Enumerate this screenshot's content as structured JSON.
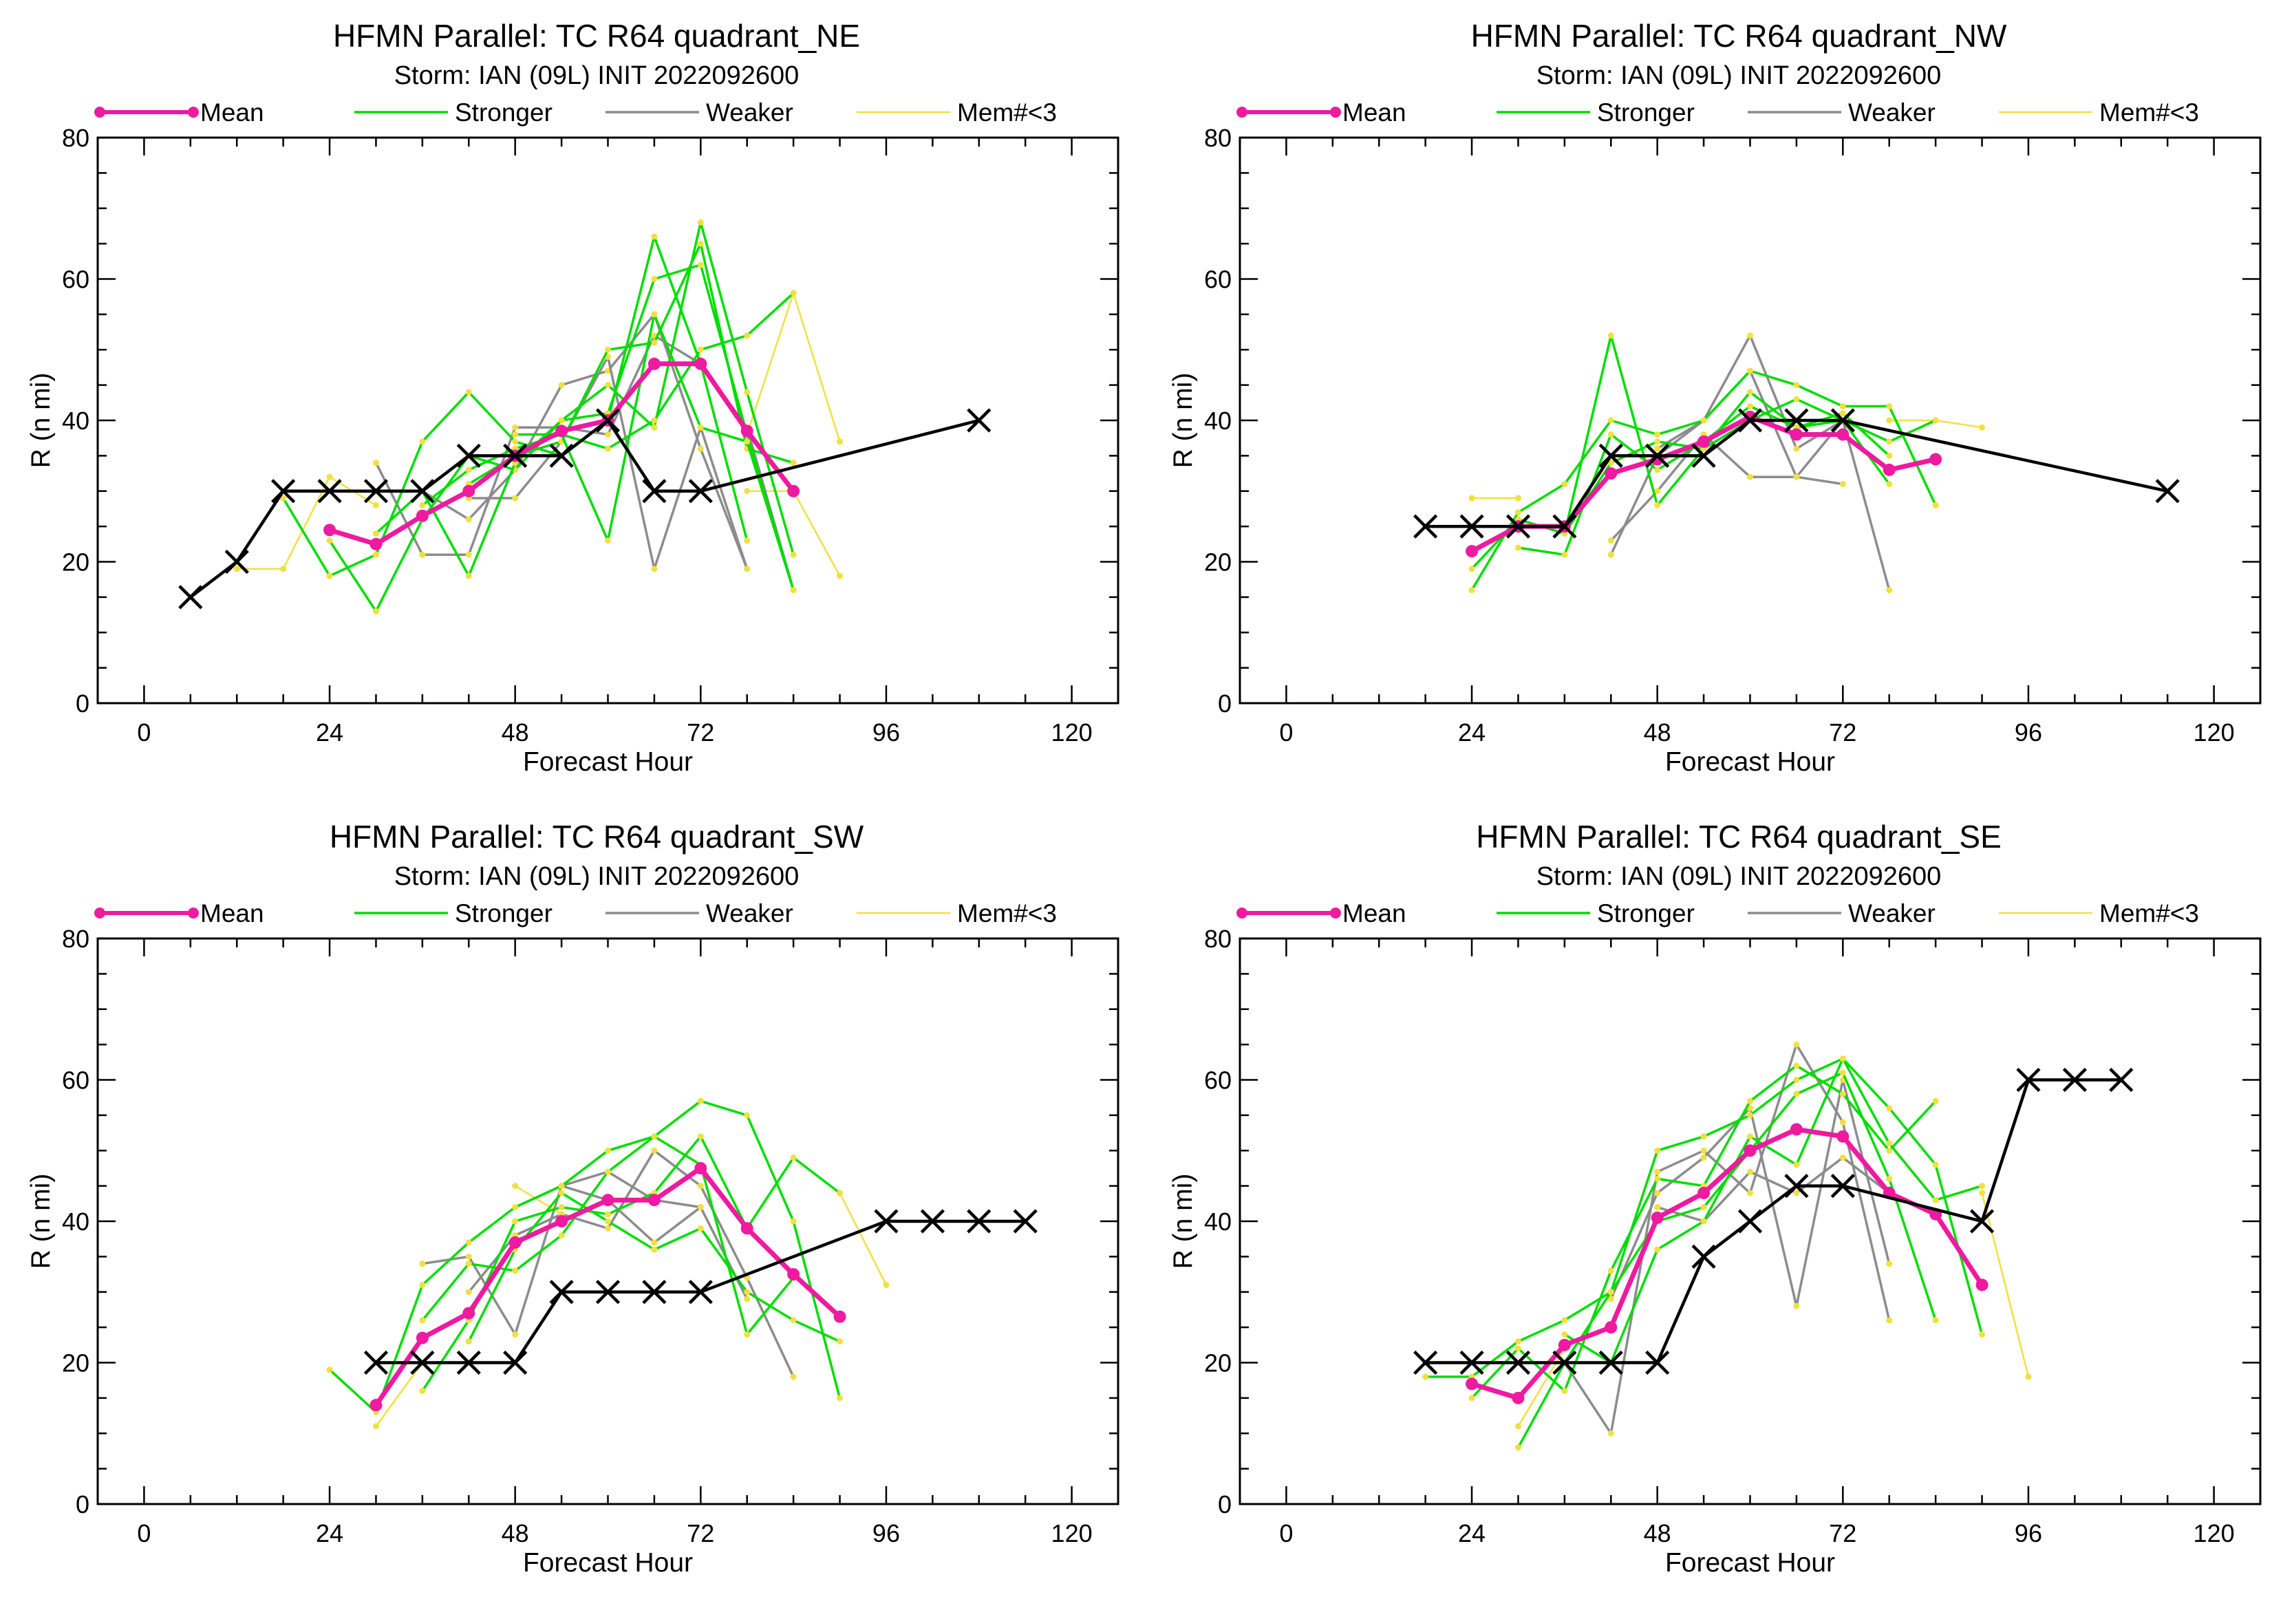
{
  "page": {
    "background": "#ffffff"
  },
  "legend": [
    {
      "label": "Mean",
      "color": "#ee1aa0",
      "style": "mean"
    },
    {
      "label": "Stronger",
      "color": "#00dd00",
      "style": "line"
    },
    {
      "label": "Weaker",
      "color": "#8c8c8c",
      "style": "line"
    },
    {
      "label": "Mem#<3",
      "color": "#f0e040",
      "style": "line"
    }
  ],
  "best_track_color": "#000000",
  "chart_data": [
    {
      "type": "line",
      "title": "HFMN Parallel: TC  R64 quadrant_NE",
      "subtitle": "Storm: IAN (09L) INIT 2022092600",
      "xlabel": "Forecast Hour",
      "ylabel": "R (n mi)",
      "xlim": [
        -6,
        126
      ],
      "ylim": [
        0,
        80
      ],
      "xticks": [
        0,
        24,
        48,
        72,
        96,
        120
      ],
      "yticks": [
        0,
        20,
        40,
        60,
        80
      ],
      "series": [
        {
          "name": "Mean",
          "x": [
            24,
            30,
            36,
            42,
            48,
            54,
            60,
            66,
            72,
            78,
            84
          ],
          "y": [
            24.5,
            22.5,
            26.5,
            30,
            35,
            38.5,
            40,
            48,
            48,
            38.5,
            30
          ]
        },
        {
          "name": "Best Track",
          "x": [
            6,
            12,
            18,
            24,
            30,
            36,
            42,
            48,
            54,
            60,
            66,
            72,
            108
          ],
          "y": [
            15,
            20,
            30,
            30,
            30,
            30,
            35,
            35,
            35,
            40,
            30,
            30,
            40
          ]
        },
        {
          "name": "Stronger",
          "x": [
            18,
            24,
            30,
            36,
            42,
            48,
            54,
            60,
            66,
            72,
            78
          ],
          "y": [
            29,
            18,
            21,
            37,
            44,
            37,
            35,
            40,
            66,
            48,
            23
          ]
        },
        {
          "name": "Stronger",
          "x": [
            24,
            30,
            36,
            42,
            48,
            54,
            60,
            66,
            72,
            78,
            84
          ],
          "y": [
            23,
            13,
            26,
            35,
            33,
            40,
            41,
            60,
            62,
            38,
            16
          ]
        },
        {
          "name": "Stronger",
          "x": [
            30,
            36,
            42,
            48,
            54,
            60,
            66,
            72,
            78,
            84
          ],
          "y": [
            24,
            30,
            18,
            34,
            40,
            45,
            39,
            68,
            44,
            21
          ]
        },
        {
          "name": "Stronger",
          "x": [
            36,
            42,
            48,
            54,
            60,
            66,
            72,
            78,
            84
          ],
          "y": [
            28,
            33,
            36,
            38,
            36,
            40,
            50,
            52,
            58
          ]
        },
        {
          "name": "Stronger",
          "x": [
            42,
            48,
            54,
            60,
            66,
            72,
            78,
            84
          ],
          "y": [
            31,
            35,
            37,
            50,
            51,
            65,
            36,
            34
          ]
        },
        {
          "name": "Stronger",
          "x": [
            48,
            54,
            60,
            66,
            72,
            78,
            84
          ],
          "y": [
            38,
            38,
            23,
            55,
            39,
            37,
            16
          ]
        },
        {
          "name": "Weaker",
          "x": [
            30,
            36,
            42,
            48,
            54,
            60,
            66,
            72,
            78,
            84
          ],
          "y": [
            34,
            21,
            21,
            39,
            39,
            38,
            52,
            48,
            39,
            16
          ]
        },
        {
          "name": "Weaker",
          "x": [
            36,
            42,
            48,
            54,
            60,
            66,
            72,
            78
          ],
          "y": [
            30,
            26,
            33,
            45,
            47,
            55,
            36,
            19
          ]
        },
        {
          "name": "Weaker",
          "x": [
            42,
            48,
            54,
            60,
            66,
            72,
            78
          ],
          "y": [
            29,
            29,
            37,
            49,
            19,
            39,
            19
          ]
        },
        {
          "name": "Mem#<3",
          "x": [
            12,
            18,
            24,
            30
          ],
          "y": [
            19,
            19,
            32,
            28
          ]
        },
        {
          "name": "Mem#<3",
          "x": [
            78,
            84,
            90
          ],
          "y": [
            38,
            58,
            37
          ]
        },
        {
          "name": "Mem#<3",
          "x": [
            78,
            84,
            90
          ],
          "y": [
            30,
            30,
            18
          ]
        }
      ]
    },
    {
      "type": "line",
      "title": "HFMN Parallel: TC  R64 quadrant_NW",
      "subtitle": "Storm: IAN (09L) INIT 2022092600",
      "xlabel": "Forecast Hour",
      "ylabel": "R (n mi)",
      "xlim": [
        -6,
        126
      ],
      "ylim": [
        0,
        80
      ],
      "xticks": [
        0,
        24,
        48,
        72,
        96,
        120
      ],
      "yticks": [
        0,
        20,
        40,
        60,
        80
      ],
      "series": [
        {
          "name": "Mean",
          "x": [
            24,
            30,
            36,
            42,
            48,
            54,
            60,
            66,
            72,
            78,
            84
          ],
          "y": [
            21.5,
            25,
            25,
            32.5,
            34.5,
            37,
            40.5,
            38,
            38,
            33,
            34.5
          ]
        },
        {
          "name": "Best Track",
          "x": [
            18,
            24,
            30,
            36,
            42,
            48,
            54,
            60,
            66,
            72,
            114
          ],
          "y": [
            25,
            25,
            25,
            25,
            35,
            35,
            35,
            40,
            40,
            40,
            30
          ]
        },
        {
          "name": "Stronger",
          "x": [
            24,
            30,
            36,
            42,
            48,
            54,
            60,
            66,
            72,
            78,
            84
          ],
          "y": [
            16,
            27,
            31,
            40,
            38,
            40,
            47,
            45,
            42,
            42,
            28
          ]
        },
        {
          "name": "Stronger",
          "x": [
            24,
            30,
            36,
            42,
            48,
            54,
            60,
            66,
            72,
            78
          ],
          "y": [
            19,
            26,
            24,
            52,
            28,
            36,
            44,
            39,
            40,
            31
          ]
        },
        {
          "name": "Stronger",
          "x": [
            30,
            36,
            42,
            48,
            54,
            60,
            66,
            72,
            78
          ],
          "y": [
            22,
            21,
            38,
            33,
            37,
            42,
            39,
            41,
            35
          ]
        },
        {
          "name": "Stronger",
          "x": [
            36,
            42,
            48,
            54,
            60,
            66,
            72,
            78,
            84
          ],
          "y": [
            24,
            34,
            37,
            36,
            40,
            43,
            40,
            37,
            40
          ]
        },
        {
          "name": "Weaker",
          "x": [
            42,
            48,
            54,
            60,
            66,
            72,
            78
          ],
          "y": [
            21,
            35,
            40,
            47,
            32,
            40,
            16
          ]
        },
        {
          "name": "Weaker",
          "x": [
            42,
            48,
            54,
            60,
            66,
            72
          ],
          "y": [
            23,
            30,
            38,
            32,
            32,
            31
          ]
        },
        {
          "name": "Weaker",
          "x": [
            48,
            54,
            60,
            66,
            72
          ],
          "y": [
            36,
            40,
            52,
            36,
            40
          ]
        },
        {
          "name": "Mem#<3",
          "x": [
            24,
            30
          ],
          "y": [
            29,
            29
          ]
        },
        {
          "name": "Mem#<3",
          "x": [
            78,
            84,
            90
          ],
          "y": [
            40,
            40,
            39
          ]
        }
      ]
    },
    {
      "type": "line",
      "title": "HFMN Parallel: TC  R64 quadrant_SW",
      "subtitle": "Storm: IAN (09L) INIT 2022092600",
      "xlabel": "Forecast Hour",
      "ylabel": "R (n mi)",
      "xlim": [
        -6,
        126
      ],
      "ylim": [
        0,
        80
      ],
      "xticks": [
        0,
        24,
        48,
        72,
        96,
        120
      ],
      "yticks": [
        0,
        20,
        40,
        60,
        80
      ],
      "series": [
        {
          "name": "Mean",
          "x": [
            30,
            36,
            42,
            48,
            54,
            60,
            66,
            72,
            78,
            84,
            90
          ],
          "y": [
            14,
            23.5,
            27,
            37,
            40,
            43,
            43,
            47.5,
            39,
            32.5,
            26.5
          ]
        },
        {
          "name": "Best Track",
          "x": [
            30,
            36,
            42,
            48,
            54,
            60,
            66,
            72,
            96,
            102,
            108,
            114
          ],
          "y": [
            20,
            20,
            20,
            20,
            30,
            30,
            30,
            30,
            40,
            40,
            40,
            40
          ]
        },
        {
          "name": "Stronger",
          "x": [
            24,
            30,
            36,
            42,
            48,
            54,
            60,
            66,
            72,
            78,
            84,
            90
          ],
          "y": [
            19,
            13,
            31,
            37,
            42,
            45,
            50,
            52,
            57,
            55,
            40,
            15
          ]
        },
        {
          "name": "Stronger",
          "x": [
            36,
            42,
            48,
            54,
            60,
            66,
            72,
            78,
            84,
            90
          ],
          "y": [
            16,
            26,
            40,
            42,
            41,
            44,
            52,
            39,
            49,
            44
          ]
        },
        {
          "name": "Stronger",
          "x": [
            36,
            42,
            48,
            54,
            60,
            66,
            72,
            78,
            84
          ],
          "y": [
            26,
            34,
            33,
            38,
            47,
            52,
            48,
            24,
            32
          ]
        },
        {
          "name": "Stronger",
          "x": [
            42,
            48,
            54,
            60,
            66,
            72,
            78,
            84,
            90
          ],
          "y": [
            23,
            36,
            44,
            40,
            36,
            39,
            30,
            26,
            23
          ]
        },
        {
          "name": "Weaker",
          "x": [
            36,
            42,
            48,
            54,
            60,
            66,
            72,
            78
          ],
          "y": [
            34,
            35,
            24,
            45,
            47,
            43,
            42,
            29
          ]
        },
        {
          "name": "Weaker",
          "x": [
            42,
            48,
            54,
            60,
            66,
            72,
            78,
            84
          ],
          "y": [
            30,
            38,
            41,
            39,
            50,
            45,
            32,
            18
          ]
        },
        {
          "name": "Weaker",
          "x": [
            48,
            54,
            60,
            66,
            72
          ],
          "y": [
            42,
            45,
            43,
            37,
            42
          ]
        },
        {
          "name": "Mem#<3",
          "x": [
            30,
            36
          ],
          "y": [
            11,
            20
          ]
        },
        {
          "name": "Mem#<3",
          "x": [
            48,
            54
          ],
          "y": [
            45,
            41
          ]
        },
        {
          "name": "Mem#<3",
          "x": [
            90,
            96
          ],
          "y": [
            44,
            31
          ]
        }
      ]
    },
    {
      "type": "line",
      "title": "HFMN Parallel: TC  R64 quadrant_SE",
      "subtitle": "Storm: IAN (09L) INIT 2022092600",
      "xlabel": "Forecast Hour",
      "ylabel": "R (n mi)",
      "xlim": [
        -6,
        126
      ],
      "ylim": [
        0,
        80
      ],
      "xticks": [
        0,
        24,
        48,
        72,
        96,
        120
      ],
      "yticks": [
        0,
        20,
        40,
        60,
        80
      ],
      "series": [
        {
          "name": "Mean",
          "x": [
            24,
            30,
            36,
            42,
            48,
            54,
            60,
            66,
            72,
            78,
            84,
            90
          ],
          "y": [
            17,
            15,
            22.5,
            25,
            40.5,
            44,
            50,
            53,
            52,
            44,
            41,
            31
          ]
        },
        {
          "name": "Best Track",
          "x": [
            18,
            24,
            30,
            36,
            42,
            48,
            54,
            60,
            66,
            72,
            90,
            96,
            102,
            108
          ],
          "y": [
            20,
            20,
            20,
            20,
            20,
            20,
            35,
            40,
            45,
            45,
            40,
            60,
            60,
            60
          ]
        },
        {
          "name": "Stronger",
          "x": [
            18,
            24,
            30,
            36,
            42,
            48,
            54,
            60,
            66,
            72,
            78,
            84,
            90
          ],
          "y": [
            18,
            18,
            23,
            26,
            30,
            50,
            52,
            55,
            60,
            63,
            56,
            48,
            24
          ]
        },
        {
          "name": "Stronger",
          "x": [
            24,
            30,
            36,
            42,
            48,
            54,
            60,
            66,
            72,
            78,
            84
          ],
          "y": [
            15,
            22,
            16,
            33,
            46,
            45,
            57,
            62,
            58,
            50,
            57
          ]
        },
        {
          "name": "Stronger",
          "x": [
            30,
            36,
            42,
            48,
            54,
            60,
            66,
            72,
            78,
            84
          ],
          "y": [
            8,
            20,
            30,
            40,
            42,
            50,
            58,
            61,
            46,
            26
          ]
        },
        {
          "name": "Stronger",
          "x": [
            36,
            42,
            48,
            54,
            60,
            66,
            72,
            78,
            84,
            90
          ],
          "y": [
            24,
            20,
            36,
            40,
            52,
            48,
            63,
            51,
            43,
            45
          ]
        },
        {
          "name": "Weaker",
          "x": [
            36,
            42,
            48,
            54,
            60,
            66,
            72,
            78
          ],
          "y": [
            20,
            10,
            47,
            50,
            44,
            65,
            54,
            26
          ]
        },
        {
          "name": "Weaker",
          "x": [
            42,
            48,
            54,
            60,
            66,
            72,
            78
          ],
          "y": [
            29,
            44,
            49,
            56,
            28,
            60,
            34
          ]
        },
        {
          "name": "Weaker",
          "x": [
            48,
            54,
            60,
            66,
            72,
            78
          ],
          "y": [
            42,
            40,
            47,
            44,
            49,
            44
          ]
        },
        {
          "name": "Mem#<3",
          "x": [
            30,
            36
          ],
          "y": [
            11,
            22
          ]
        },
        {
          "name": "Mem#<3",
          "x": [
            90,
            96
          ],
          "y": [
            44,
            18
          ]
        }
      ]
    }
  ]
}
